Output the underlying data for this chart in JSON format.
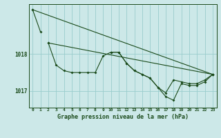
{
  "background_color": "#cce8e8",
  "line_color": "#1a4a1a",
  "grid_color": "#99cccc",
  "xlabel": "Graphe pression niveau de la mer (hPa)",
  "xlim": [
    -0.5,
    23.5
  ],
  "ylim": [
    1016.55,
    1019.35
  ],
  "yticks": [
    1017.0,
    1018.0
  ],
  "xticks": [
    0,
    1,
    2,
    3,
    4,
    5,
    6,
    7,
    8,
    9,
    10,
    11,
    12,
    13,
    14,
    15,
    16,
    17,
    18,
    19,
    20,
    21,
    22,
    23
  ],
  "series": [
    {
      "x": [
        0,
        1
      ],
      "y": [
        1019.2,
        1018.6
      ]
    },
    {
      "x": [
        2,
        3,
        4,
        5,
        6,
        7,
        8,
        9,
        10,
        11,
        12,
        13,
        14,
        15,
        16,
        17,
        18,
        19,
        20,
        21,
        22,
        23
      ],
      "y": [
        1018.3,
        1017.7,
        1017.55,
        1017.5,
        1017.5,
        1017.5,
        1017.5,
        1017.95,
        1018.05,
        1018.05,
        1017.75,
        1017.55,
        1017.45,
        1017.35,
        1017.1,
        1016.95,
        1017.3,
        1017.25,
        1017.2,
        1017.2,
        1017.3,
        1017.45
      ]
    },
    {
      "x": [
        0,
        23
      ],
      "y": [
        1019.2,
        1017.45
      ]
    },
    {
      "x": [
        2,
        23
      ],
      "y": [
        1018.3,
        1017.45
      ]
    },
    {
      "x": [
        10,
        11,
        12,
        13,
        14,
        15,
        16,
        17,
        18,
        19,
        20,
        21,
        22,
        23
      ],
      "y": [
        1018.05,
        1018.05,
        1017.75,
        1017.55,
        1017.45,
        1017.35,
        1017.1,
        1016.85,
        1016.75,
        1017.2,
        1017.15,
        1017.15,
        1017.25,
        1017.45
      ]
    }
  ]
}
